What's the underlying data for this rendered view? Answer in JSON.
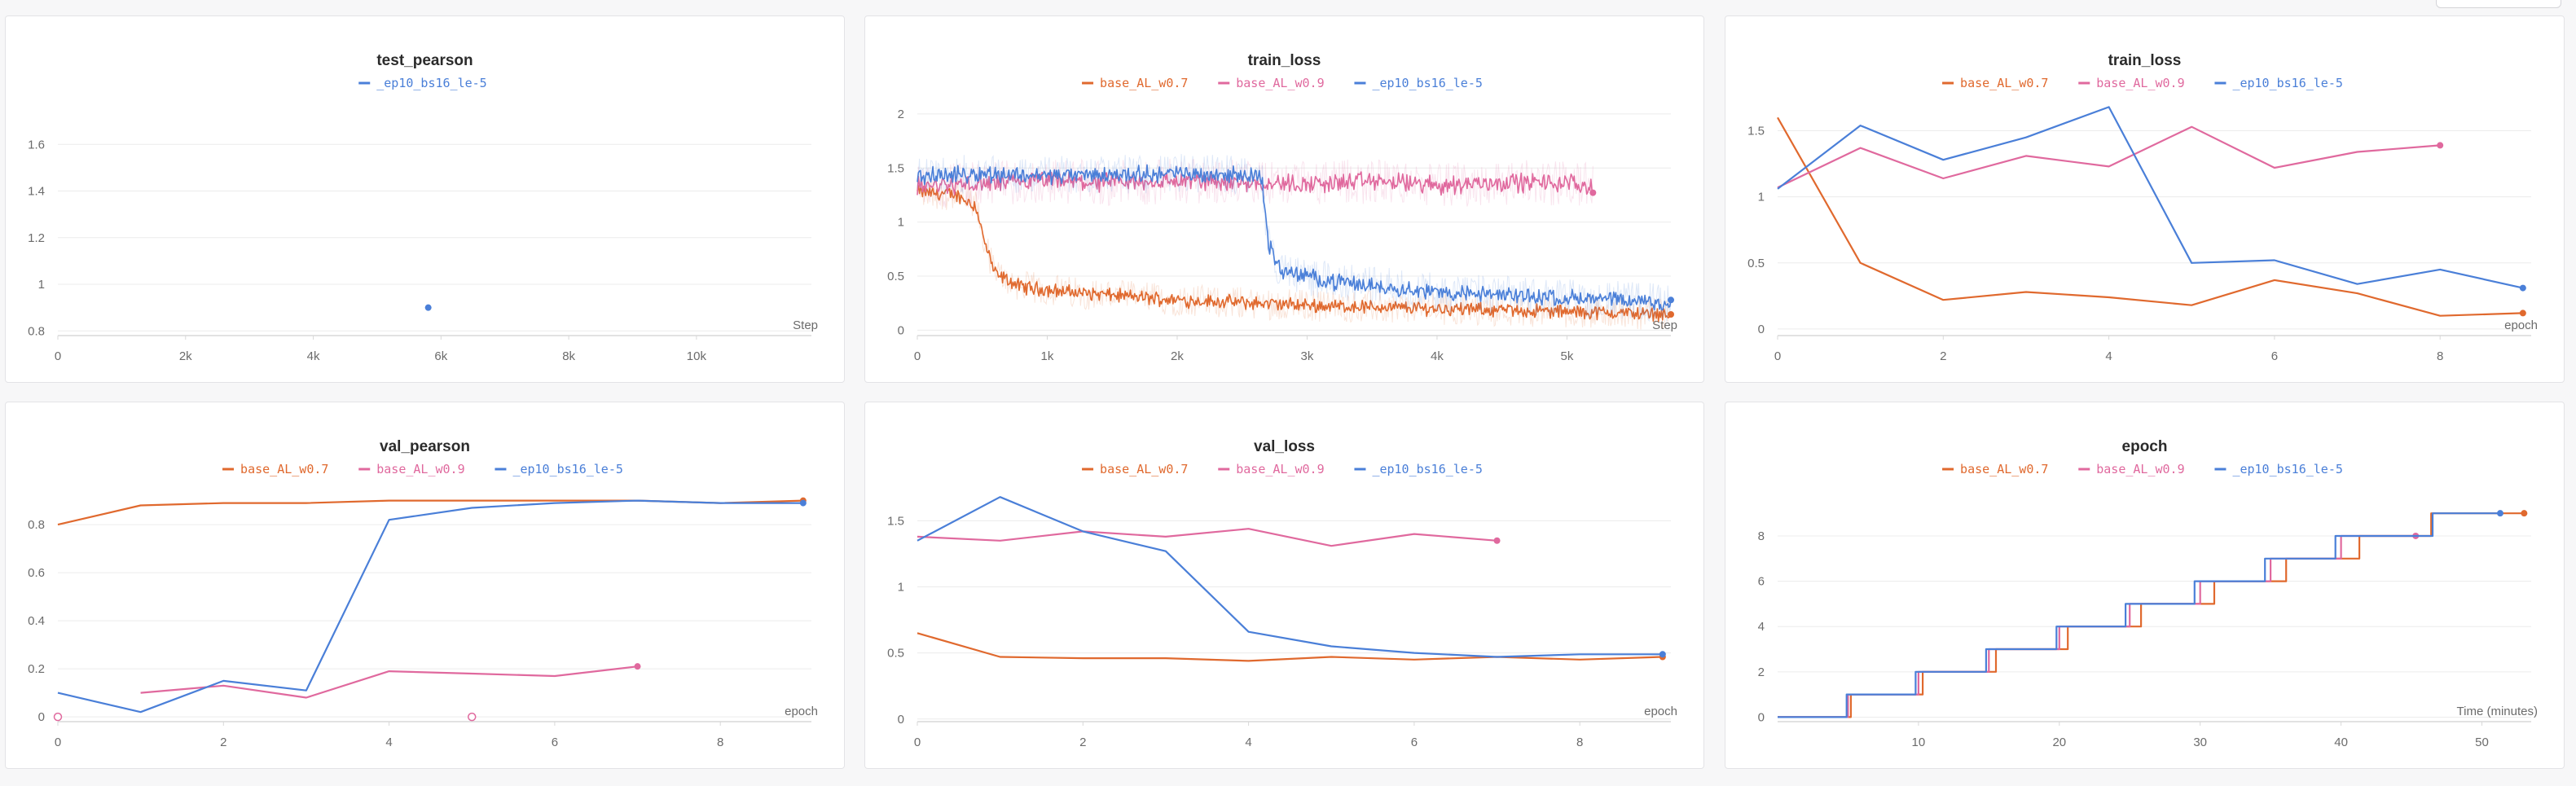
{
  "colors": {
    "base_AL_w0.7": "#e0692e",
    "base_AL_w0.9": "#e0699e",
    "_ep10_bs16_le-5": "#4a7fd8",
    "grid": "#ececec",
    "axis": "#d8d8d8"
  },
  "chart_data": [
    {
      "id": "test_pearson",
      "type": "scatter",
      "title": "test_pearson",
      "xlabel": "Step",
      "legend": [
        "_ep10_bs16_le-5"
      ],
      "xlim": [
        0,
        11800
      ],
      "ylim": [
        0.78,
        1.8
      ],
      "xticks": [
        0,
        2000,
        4000,
        6000,
        8000,
        10000
      ],
      "xtick_labels": [
        "0",
        "2k",
        "4k",
        "6k",
        "8k",
        "10k"
      ],
      "yticks": [
        0.8,
        1,
        1.2,
        1.4,
        1.6
      ],
      "ytick_labels": [
        "0.8",
        "1",
        "1.2",
        "1.4",
        "1.6"
      ],
      "grid": true,
      "series": [
        {
          "name": "_ep10_bs16_le-5",
          "x": [
            5800
          ],
          "y": [
            0.9
          ],
          "end_marker": true
        }
      ]
    },
    {
      "id": "train_loss_step",
      "type": "line",
      "title": "train_loss",
      "xlabel": "Step",
      "legend": [
        "base_AL_w0.7",
        "base_AL_w0.9",
        "_ep10_bs16_le-5"
      ],
      "xlim": [
        0,
        5800
      ],
      "ylim": [
        -0.05,
        2.15
      ],
      "xticks": [
        0,
        1000,
        2000,
        3000,
        4000,
        5000
      ],
      "xtick_labels": [
        "0",
        "1k",
        "2k",
        "3k",
        "4k",
        "5k"
      ],
      "yticks": [
        0,
        0.5,
        1,
        1.5,
        2
      ],
      "ytick_labels": [
        "0",
        "0.5",
        "1",
        "1.5",
        "2"
      ],
      "grid": true,
      "noisy": true,
      "series": [
        {
          "name": "base_AL_w0.7",
          "x": [
            0,
            300,
            450,
            520,
            600,
            800,
            1200,
            2000,
            3000,
            4000,
            5000,
            5800
          ],
          "y": [
            1.28,
            1.25,
            1.15,
            0.8,
            0.52,
            0.4,
            0.35,
            0.28,
            0.23,
            0.2,
            0.17,
            0.15
          ],
          "noise": 0.05,
          "end_marker": true
        },
        {
          "name": "base_AL_w0.9",
          "x": [
            0,
            500,
            1000,
            1500,
            2000,
            2500,
            3000,
            3500,
            4000,
            4500,
            5000,
            5200
          ],
          "y": [
            1.33,
            1.35,
            1.38,
            1.36,
            1.38,
            1.37,
            1.35,
            1.38,
            1.34,
            1.37,
            1.36,
            1.33
          ],
          "noise": 0.07,
          "end_marker": true
        },
        {
          "name": "_ep10_bs16_le-5",
          "x": [
            0,
            500,
            1000,
            1500,
            2000,
            2650,
            2700,
            2800,
            3200,
            4000,
            5000,
            5800
          ],
          "y": [
            1.42,
            1.45,
            1.43,
            1.44,
            1.45,
            1.43,
            0.8,
            0.55,
            0.45,
            0.35,
            0.3,
            0.25
          ],
          "noise": 0.06,
          "end_marker": true
        }
      ]
    },
    {
      "id": "train_loss_epoch",
      "type": "line",
      "title": "train_loss",
      "xlabel": "epoch",
      "legend": [
        "base_AL_w0.7",
        "base_AL_w0.9",
        "_ep10_bs16_le-5"
      ],
      "xlim": [
        0,
        9.1
      ],
      "ylim": [
        -0.05,
        1.75
      ],
      "xticks": [
        0,
        2,
        4,
        6,
        8
      ],
      "xtick_labels": [
        "0",
        "2",
        "4",
        "6",
        "8"
      ],
      "yticks": [
        0,
        0.5,
        1,
        1.5
      ],
      "ytick_labels": [
        "0",
        "0.5",
        "1",
        "1.5"
      ],
      "grid": true,
      "series": [
        {
          "name": "base_AL_w0.7",
          "x": [
            0,
            1,
            2,
            3,
            4,
            5,
            6,
            7,
            8,
            9
          ],
          "y": [
            1.6,
            0.5,
            0.22,
            0.28,
            0.24,
            0.18,
            0.37,
            0.27,
            0.1,
            0.12
          ],
          "end_marker": true
        },
        {
          "name": "base_AL_w0.9",
          "x": [
            0,
            1,
            2,
            3,
            4,
            5,
            6,
            7,
            8
          ],
          "y": [
            1.07,
            1.37,
            1.14,
            1.31,
            1.23,
            1.53,
            1.22,
            1.34,
            1.39
          ],
          "end_marker": true
        },
        {
          "name": "_ep10_bs16_le-5",
          "x": [
            0,
            1,
            2,
            3,
            4,
            5,
            6,
            7,
            8,
            9
          ],
          "y": [
            1.06,
            1.54,
            1.28,
            1.45,
            1.68,
            0.5,
            0.52,
            0.34,
            0.45,
            0.31
          ],
          "end_marker": true
        }
      ]
    },
    {
      "id": "val_pearson",
      "type": "line",
      "title": "val_pearson",
      "xlabel": "epoch",
      "legend": [
        "base_AL_w0.7",
        "base_AL_w0.9",
        "_ep10_bs16_le-5"
      ],
      "xlim": [
        0,
        9.1
      ],
      "ylim": [
        -0.02,
        0.97
      ],
      "xticks": [
        0,
        2,
        4,
        6,
        8
      ],
      "xtick_labels": [
        "0",
        "2",
        "4",
        "6",
        "8"
      ],
      "yticks": [
        0,
        0.2,
        0.4,
        0.6,
        0.8
      ],
      "ytick_labels": [
        "0",
        "0.2",
        "0.4",
        "0.6",
        "0.8"
      ],
      "grid": true,
      "series": [
        {
          "name": "base_AL_w0.7",
          "x": [
            0,
            1,
            2,
            3,
            4,
            5,
            6,
            7,
            8,
            9
          ],
          "y": [
            0.8,
            0.88,
            0.89,
            0.89,
            0.9,
            0.9,
            0.9,
            0.9,
            0.89,
            0.9
          ],
          "end_marker": true
        },
        {
          "name": "base_AL_w0.9",
          "x": [
            1,
            2,
            3,
            4,
            5,
            6,
            7
          ],
          "y": [
            0.1,
            0.13,
            0.08,
            0.19,
            0.18,
            0.17,
            0.21
          ],
          "end_marker": true,
          "hollow": [
            [
              0,
              0
            ],
            [
              5,
              0
            ]
          ]
        },
        {
          "name": "_ep10_bs16_le-5",
          "x": [
            0,
            1,
            2,
            3,
            4,
            5,
            6,
            7,
            8,
            9
          ],
          "y": [
            0.1,
            0.02,
            0.15,
            0.11,
            0.82,
            0.87,
            0.89,
            0.9,
            0.89,
            0.89
          ],
          "end_marker": true
        }
      ]
    },
    {
      "id": "val_loss",
      "type": "line",
      "title": "val_loss",
      "xlabel": "epoch",
      "legend": [
        "base_AL_w0.7",
        "base_AL_w0.9",
        "_ep10_bs16_le-5"
      ],
      "xlim": [
        0,
        9.1
      ],
      "ylim": [
        -0.02,
        1.78
      ],
      "xticks": [
        0,
        2,
        4,
        6,
        8
      ],
      "xtick_labels": [
        "0",
        "2",
        "4",
        "6",
        "8"
      ],
      "yticks": [
        0,
        0.5,
        1,
        1.5
      ],
      "ytick_labels": [
        "0",
        "0.5",
        "1",
        "1.5"
      ],
      "grid": true,
      "series": [
        {
          "name": "base_AL_w0.7",
          "x": [
            0,
            1,
            2,
            3,
            4,
            5,
            6,
            7,
            8,
            9
          ],
          "y": [
            0.65,
            0.47,
            0.46,
            0.46,
            0.44,
            0.47,
            0.45,
            0.47,
            0.45,
            0.47
          ],
          "end_marker": true
        },
        {
          "name": "base_AL_w0.9",
          "x": [
            0,
            1,
            2,
            3,
            4,
            5,
            6,
            7
          ],
          "y": [
            1.38,
            1.35,
            1.42,
            1.38,
            1.44,
            1.31,
            1.4,
            1.35
          ],
          "end_marker": true
        },
        {
          "name": "_ep10_bs16_le-5",
          "x": [
            0,
            1,
            2,
            3,
            4,
            5,
            6,
            7,
            8,
            9
          ],
          "y": [
            1.35,
            1.68,
            1.42,
            1.27,
            0.66,
            0.55,
            0.5,
            0.47,
            0.49,
            0.49
          ],
          "end_marker": true
        }
      ]
    },
    {
      "id": "epoch",
      "type": "line",
      "title": "epoch",
      "xlabel": "Time (minutes)",
      "legend": [
        "base_AL_w0.7",
        "base_AL_w0.9",
        "_ep10_bs16_le-5"
      ],
      "xlim": [
        0,
        53.5
      ],
      "ylim": [
        -0.2,
        10.3
      ],
      "xticks": [
        10,
        20,
        30,
        40,
        50
      ],
      "xtick_labels": [
        "10",
        "20",
        "30",
        "40",
        "50"
      ],
      "yticks": [
        0,
        2,
        4,
        6,
        8
      ],
      "ytick_labels": [
        "0",
        "2",
        "4",
        "6",
        "8"
      ],
      "grid": true,
      "step": true,
      "series": [
        {
          "name": "base_AL_w0.7",
          "x": [
            0,
            5.2,
            10.3,
            15.5,
            20.6,
            25.8,
            31,
            36.1,
            41.3,
            46.4,
            53
          ],
          "y": [
            0,
            1,
            2,
            3,
            4,
            5,
            6,
            7,
            8,
            9,
            9
          ],
          "end_marker": true
        },
        {
          "name": "base_AL_w0.9",
          "x": [
            0,
            5,
            10,
            15,
            20,
            25,
            30,
            35,
            40,
            45.3
          ],
          "y": [
            0,
            1,
            2,
            3,
            4,
            5,
            6,
            7,
            8,
            8
          ],
          "end_marker": true
        },
        {
          "name": "_ep10_bs16_le-5",
          "x": [
            0,
            4.9,
            9.8,
            14.8,
            19.8,
            24.7,
            29.6,
            34.6,
            39.6,
            44.5,
            46.5,
            51.3
          ],
          "y": [
            0,
            1,
            2,
            3,
            4,
            5,
            6,
            7,
            8,
            8,
            9,
            9
          ],
          "end_marker": true
        }
      ]
    }
  ]
}
